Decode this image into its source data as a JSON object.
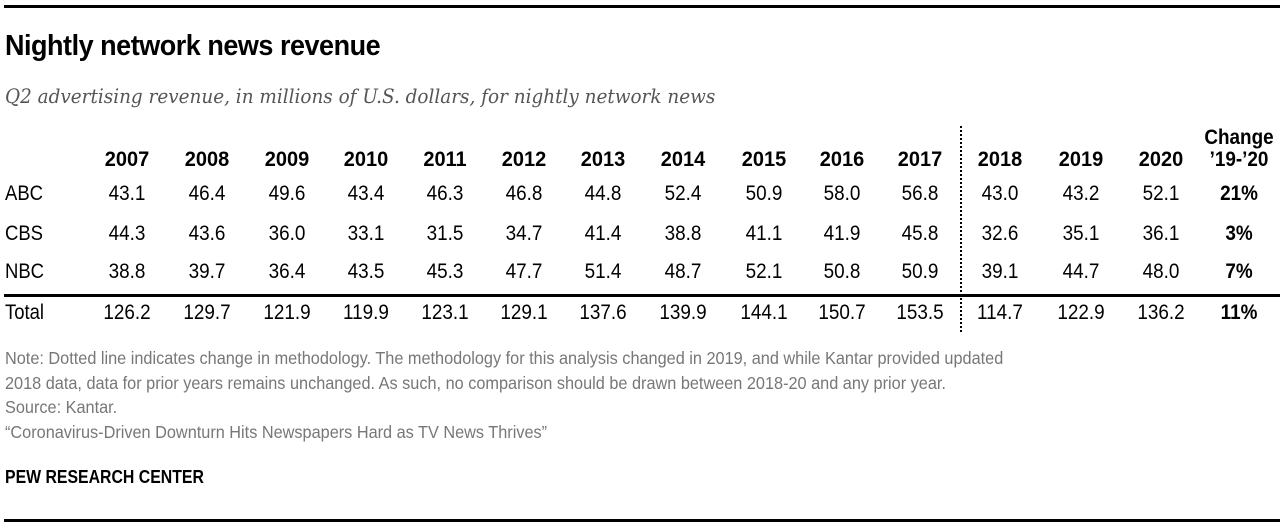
{
  "title": "Nightly network news revenue",
  "subtitle": "Q2 advertising revenue, in millions of U.S. dollars, for nightly network news",
  "chart_data": {
    "type": "table",
    "title": "Nightly network news revenue",
    "subtitle": "Q2 advertising revenue, in millions of U.S. dollars, for nightly network news",
    "columns": [
      "2007",
      "2008",
      "2009",
      "2010",
      "2011",
      "2012",
      "2013",
      "2014",
      "2015",
      "2016",
      "2017",
      "2018",
      "2019",
      "2020"
    ],
    "change_header": [
      "Change",
      "’19-’20"
    ],
    "methodology_break_after": "2017",
    "rows": [
      {
        "label": "ABC",
        "values": [
          "43.1",
          "46.4",
          "49.6",
          "43.4",
          "46.3",
          "46.8",
          "44.8",
          "52.4",
          "50.9",
          "58.0",
          "56.8",
          "43.0",
          "43.2",
          "52.1"
        ],
        "change": "21%"
      },
      {
        "label": "CBS",
        "values": [
          "44.3",
          "43.6",
          "36.0",
          "33.1",
          "31.5",
          "34.7",
          "41.4",
          "38.8",
          "41.1",
          "41.9",
          "45.8",
          "32.6",
          "35.1",
          "36.1"
        ],
        "change": "3%"
      },
      {
        "label": "NBC",
        "values": [
          "38.8",
          "39.7",
          "36.4",
          "43.5",
          "45.3",
          "47.7",
          "51.4",
          "48.7",
          "52.1",
          "50.8",
          "50.9",
          "39.1",
          "44.7",
          "48.0"
        ],
        "change": "7%"
      },
      {
        "label": "Total",
        "values": [
          "126.2",
          "129.7",
          "121.9",
          "119.9",
          "123.1",
          "129.1",
          "137.6",
          "139.9",
          "144.1",
          "150.7",
          "153.5",
          "114.7",
          "122.9",
          "136.2"
        ],
        "change": "11%"
      }
    ]
  },
  "notes": [
    "Note: Dotted line indicates change in methodology. The methodology for this analysis changed in 2019, and while Kantar provided updated",
    "2018 data, data for prior years remains unchanged. As such, no comparison should be drawn between 2018-20 and any prior year.",
    "Source: Kantar.",
    "“Coronavirus-Driven Downturn Hits Newspapers Hard as TV News Thrives”"
  ],
  "brand": "PEW RESEARCH CENTER"
}
